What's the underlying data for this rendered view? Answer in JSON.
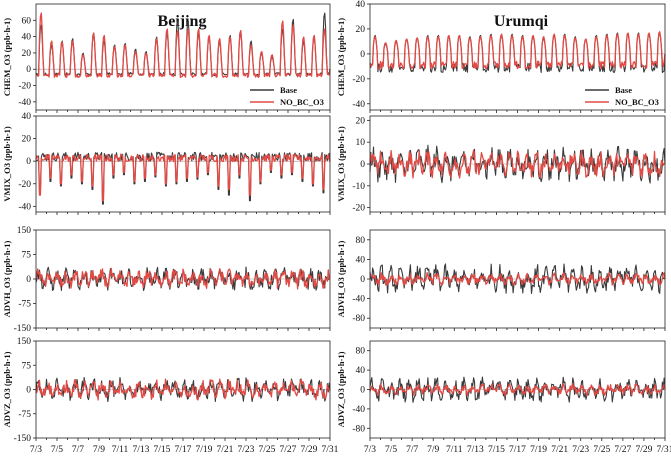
{
  "figure": {
    "columns": [
      "Beijing",
      "Urumqi"
    ],
    "x_tick_labels": [
      "7/3",
      "7/5",
      "7/7",
      "7/9",
      "7/11",
      "7/13",
      "7/15",
      "7/17",
      "7/19",
      "7/21",
      "7/23",
      "7/25",
      "7/27",
      "7/29",
      "7/31"
    ],
    "legend": {
      "base_label": "Base",
      "no_bc_label": "NO_BC_O3"
    },
    "colors": {
      "base": "#3a3a3a",
      "no_bc": "#e24a45"
    }
  },
  "chart_data": [
    {
      "id": "beijing-chem",
      "type": "line",
      "title": "Beijing",
      "ylabel": "CHEM_O3 (ppb·h-1)",
      "ylim": [
        -50,
        80
      ],
      "yticks": [
        -40,
        -20,
        0,
        20,
        40,
        60
      ],
      "xlim_days": [
        3,
        31
      ],
      "legend": "lower-right",
      "series": [
        {
          "name": "Base",
          "pattern": "diurnal",
          "peak_values": [
            55,
            30,
            35,
            38,
            20,
            45,
            35,
            30,
            32,
            25,
            22,
            40,
            45,
            60,
            60,
            45,
            40,
            35,
            42,
            48,
            35,
            20,
            15,
            50,
            62,
            35,
            40,
            70,
            30
          ],
          "night_min": -8
        },
        {
          "name": "NO_BC_O3",
          "pattern": "diurnal",
          "peak_values": [
            70,
            35,
            34,
            35,
            18,
            45,
            42,
            28,
            30,
            22,
            20,
            38,
            50,
            48,
            50,
            50,
            42,
            38,
            40,
            48,
            30,
            22,
            18,
            60,
            55,
            40,
            42,
            50,
            30
          ],
          "night_min": -10
        }
      ]
    },
    {
      "id": "urumqi-chem",
      "type": "line",
      "title": "Urumqi",
      "ylabel": "CHEM_O3 (ppb·h-1)",
      "ylim": [
        -45,
        40
      ],
      "yticks": [
        -40,
        -20,
        0,
        20,
        40
      ],
      "xlim_days": [
        3,
        31
      ],
      "legend": "lower-right",
      "series": [
        {
          "name": "Base",
          "pattern": "diurnal",
          "peak_values": [
            15,
            8,
            10,
            12,
            13,
            15,
            15,
            14,
            15,
            14,
            15,
            16,
            15,
            16,
            15,
            14,
            13,
            15,
            16,
            14,
            12,
            15,
            16,
            17,
            16,
            17,
            16,
            18,
            18
          ],
          "night_min": -15
        },
        {
          "name": "NO_BC_O3",
          "pattern": "diurnal",
          "peak_values": [
            14,
            9,
            11,
            12,
            13,
            14,
            14,
            15,
            15,
            13,
            14,
            15,
            16,
            15,
            14,
            15,
            14,
            16,
            15,
            13,
            12,
            14,
            15,
            16,
            17,
            16,
            17,
            18,
            20
          ],
          "night_min": -12
        }
      ]
    },
    {
      "id": "beijing-vmix",
      "type": "line",
      "ylabel": "VMIX_O3 (ppb·h-1)",
      "ylim": [
        -45,
        40
      ],
      "yticks": [
        -40,
        -20,
        0,
        20,
        40
      ],
      "xlim_days": [
        3,
        31
      ],
      "series": [
        {
          "name": "Base",
          "pattern": "dips",
          "day_max": 10,
          "dip_values": [
            -28,
            -18,
            -22,
            -15,
            -20,
            -25,
            -38,
            -15,
            -12,
            -20,
            -18,
            -14,
            -22,
            -20,
            -18,
            -16,
            -12,
            -25,
            -30,
            -15,
            -35,
            -20,
            -10,
            -15,
            -12,
            -18,
            -22,
            -28,
            -30
          ]
        },
        {
          "name": "NO_BC_O3",
          "pattern": "dips",
          "day_max": 8,
          "dip_values": [
            -30,
            -15,
            -20,
            -12,
            -18,
            -22,
            -35,
            -12,
            -10,
            -18,
            -15,
            -12,
            -20,
            -18,
            -15,
            -14,
            -10,
            -22,
            -25,
            -12,
            -30,
            -18,
            -8,
            -12,
            -10,
            -15,
            -20,
            -25,
            -20
          ]
        }
      ]
    },
    {
      "id": "urumqi-vmix",
      "type": "line",
      "ylabel": "VMIX_O3 (ppb·h-1)",
      "ylim": [
        -22,
        22
      ],
      "yticks": [
        -20,
        -10,
        0,
        10,
        20
      ],
      "xlim_days": [
        3,
        31
      ],
      "series": [
        {
          "name": "Base",
          "pattern": "noisy",
          "amplitude": 8
        },
        {
          "name": "NO_BC_O3",
          "pattern": "noisy",
          "amplitude": 6
        }
      ]
    },
    {
      "id": "beijing-advh",
      "type": "line",
      "ylabel": "ADVH_O3 (ppb·h-1)",
      "ylim": [
        -150,
        150
      ],
      "yticks": [
        -150,
        -75,
        0,
        75,
        150
      ],
      "xlim_days": [
        3,
        31
      ],
      "series": [
        {
          "name": "Base",
          "pattern": "noisy",
          "amplitude": 35
        },
        {
          "name": "NO_BC_O3",
          "pattern": "noisy",
          "amplitude": 30
        }
      ]
    },
    {
      "id": "urumqi-advh",
      "type": "line",
      "ylabel": "ADVH_O3 (ppb·h-1)",
      "ylim": [
        -100,
        100
      ],
      "yticks": [
        -80,
        -40,
        0,
        40,
        80
      ],
      "xlim_days": [
        3,
        31
      ],
      "series": [
        {
          "name": "Base",
          "pattern": "noisy",
          "amplitude": 28
        },
        {
          "name": "NO_BC_O3",
          "pattern": "noisy",
          "amplitude": 12
        }
      ]
    },
    {
      "id": "beijing-advz",
      "type": "line",
      "ylabel": "ADVZ_O3 (ppb·h-1)",
      "ylim": [
        -150,
        150
      ],
      "yticks": [
        -150,
        -75,
        0,
        75,
        150
      ],
      "xlim_days": [
        3,
        31
      ],
      "series": [
        {
          "name": "Base",
          "pattern": "noisy",
          "amplitude": 35
        },
        {
          "name": "NO_BC_O3",
          "pattern": "noisy",
          "amplitude": 30
        }
      ]
    },
    {
      "id": "urumqi-advz",
      "type": "line",
      "ylabel": "ADVZ_O3 (ppb·h-1)",
      "ylim": [
        -100,
        100
      ],
      "yticks": [
        -80,
        -40,
        0,
        40,
        80
      ],
      "xlim_days": [
        3,
        31
      ],
      "series": [
        {
          "name": "Base",
          "pattern": "noisy",
          "amplitude": 25
        },
        {
          "name": "NO_BC_O3",
          "pattern": "noisy",
          "amplitude": 12
        }
      ]
    }
  ]
}
